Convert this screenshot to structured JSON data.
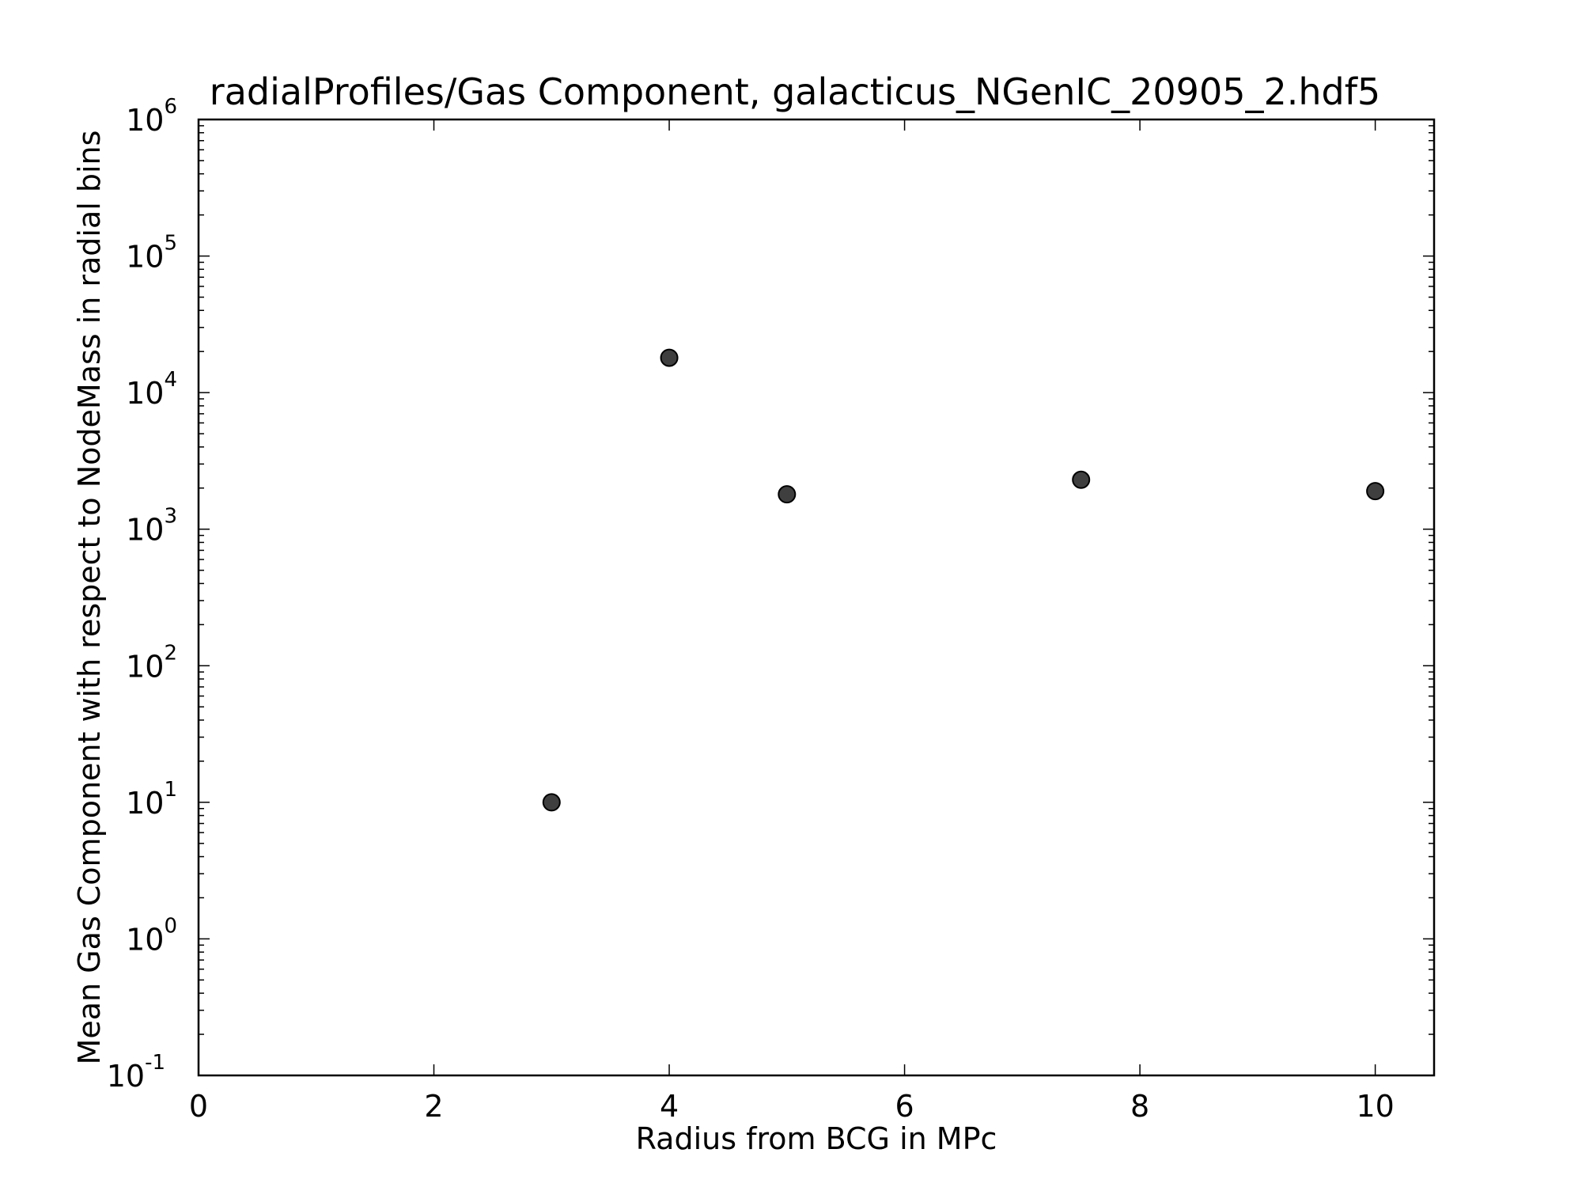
{
  "chart_data": {
    "type": "scatter",
    "title": "radialProfiles/Gas Component, galacticus_NGenIC_20905_2.hdf5",
    "xlabel": "Radius from BCG in MPc",
    "ylabel": "Mean Gas Component with respect to NodeMass in radial bins",
    "xlim": [
      0,
      10.5
    ],
    "ylim": [
      0.1,
      1000000
    ],
    "yscale": "log",
    "grid": false,
    "x_ticks": [
      0,
      2,
      4,
      6,
      8,
      10
    ],
    "x_tick_labels": [
      "0",
      "2",
      "4",
      "6",
      "8",
      "10"
    ],
    "y_ticks": [
      0.1,
      1,
      10,
      100,
      1000,
      10000,
      100000,
      1000000
    ],
    "y_tick_bases": [
      "10",
      "10",
      "10",
      "10",
      "10",
      "10",
      "10",
      "10"
    ],
    "y_tick_exponents": [
      "-1",
      "0",
      "1",
      "2",
      "3",
      "4",
      "5",
      "6"
    ],
    "marker_color": "#3f3f3f",
    "series": [
      {
        "x": [
          3,
          4,
          5,
          7.5,
          10
        ],
        "y": [
          10,
          18000,
          1800,
          2300,
          1900
        ]
      }
    ]
  }
}
